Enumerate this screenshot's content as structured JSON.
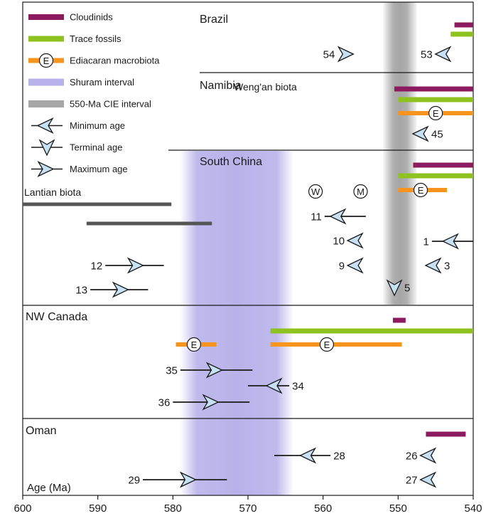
{
  "chart_data": {
    "type": "range-timeline",
    "title": "",
    "xlabel": "Age (Ma)",
    "xlim": [
      600,
      540
    ],
    "x_ticks": [
      600,
      590,
      580,
      570,
      560,
      550,
      540
    ],
    "x_direction": "decreasing-left-to-right",
    "grid": false,
    "legend_placement": "top-left",
    "colors": {
      "cloudinids": "#8b1a5e",
      "trace_fossils": "#8dc21f",
      "ediacaran": "#f7941d",
      "shuram": "#b8b2ea",
      "cie": "#a6a6a6",
      "biota_bar": "#555555",
      "arrow_fill": "#c5e1f3",
      "line": "#1a1a1a"
    },
    "legend": [
      {
        "label": "Cloudinids",
        "symbol": "cloudinids"
      },
      {
        "label": "Trace fossils",
        "symbol": "trace"
      },
      {
        "label": "Ediacaran macrobiota",
        "symbol": "ediacaran"
      },
      {
        "label": "Shuram interval",
        "symbol": "shuram"
      },
      {
        "label": "550-Ma CIE interval",
        "symbol": "cie"
      },
      {
        "label": "Minimum age",
        "symbol": "min"
      },
      {
        "label": "Terminal age",
        "symbol": "terminal"
      },
      {
        "label": "Maximum age",
        "symbol": "max"
      }
    ],
    "intervals": [
      {
        "name": "Shuram interval",
        "x": [
          578.5,
          564.5
        ]
      },
      {
        "name": "550-Ma CIE interval",
        "x": [
          552,
          547.5
        ]
      }
    ],
    "e_symbol": "E",
    "regions": [
      {
        "name": "Brazil",
        "bars": [
          {
            "kind": "cloudinids",
            "x": [
              542.5,
              540
            ]
          },
          {
            "kind": "trace",
            "x": [
              543,
              540
            ]
          }
        ],
        "ages": [
          {
            "label": "54",
            "type": "max",
            "x": 557,
            "label_side": "left"
          },
          {
            "label": "53",
            "type": "min",
            "x": 544,
            "label_side": "left"
          }
        ]
      },
      {
        "name": "Namibia",
        "bars": [
          {
            "kind": "cloudinids",
            "x": [
              550.5,
              540
            ]
          },
          {
            "kind": "trace",
            "x": [
              550,
              540
            ]
          },
          {
            "kind": "ediacaran",
            "x": [
              550,
              540
            ],
            "e_at": 545
          }
        ],
        "ages": [
          {
            "label": "45",
            "type": "min",
            "x": 547,
            "label_side": "right"
          }
        ]
      },
      {
        "name": "South China",
        "bars": [
          {
            "kind": "cloudinids",
            "x": [
              548,
              540
            ]
          },
          {
            "kind": "trace",
            "x": [
              550,
              540
            ]
          },
          {
            "kind": "ediacaran",
            "x": [
              550,
              543.5
            ],
            "e_at": 547
          }
        ],
        "biota": [
          {
            "label": "Lantian biota",
            "x": [
              600,
              580.2
            ]
          },
          {
            "label": "Weng'an biota",
            "x": [
              591.5,
              574.8
            ]
          }
        ],
        "markers": [
          {
            "label": "W",
            "x": 561
          },
          {
            "label": "M",
            "x": 555
          }
        ],
        "ages": [
          {
            "label": "11",
            "type": "min",
            "x": 558,
            "range": [
              559.8,
              554.3
            ],
            "label_side": "left"
          },
          {
            "label": "10",
            "type": "min",
            "x": 555.7,
            "label_side": "left"
          },
          {
            "label": "9",
            "type": "min",
            "x": 555.7,
            "label_side": "left"
          },
          {
            "label": "1",
            "type": "min",
            "x": 543,
            "range": [
              545.5,
              540
            ],
            "label_side": "left"
          },
          {
            "label": "3",
            "type": "min",
            "x": 545.3,
            "label_side": "right"
          },
          {
            "label": "12",
            "type": "max",
            "x": 585,
            "range": [
              589,
              581.2
            ],
            "label_side": "left"
          },
          {
            "label": "13",
            "type": "max",
            "x": 587,
            "range": [
              591,
              583.3
            ],
            "label_side": "left"
          },
          {
            "label": "5",
            "type": "terminal",
            "x": 550.5,
            "label_side": "right"
          }
        ]
      },
      {
        "name": "NW Canada",
        "bars": [
          {
            "kind": "cloudinids",
            "x": [
              550.7,
              549
            ]
          },
          {
            "kind": "trace",
            "x": [
              567,
              540
            ]
          },
          {
            "kind": "ediacaran",
            "x": [
              579.6,
              574.2
            ],
            "e_at": 577.2
          },
          {
            "kind": "ediacaran",
            "x": [
              567,
              549.5
            ],
            "e_at": 559.5
          }
        ],
        "ages": [
          {
            "label": "35",
            "type": "max",
            "x": 574.5,
            "range": [
              579,
              569.4
            ],
            "label_side": "left"
          },
          {
            "label": "34",
            "type": "min",
            "x": 566.5,
            "range": [
              570,
              564.5
            ],
            "label_side": "right"
          },
          {
            "label": "36",
            "type": "max",
            "x": 575,
            "range": [
              580,
              569.8
            ],
            "label_side": "left"
          }
        ]
      },
      {
        "name": "Oman",
        "bars": [
          {
            "kind": "cloudinids",
            "x": [
              546.3,
              541
            ]
          }
        ],
        "ages": [
          {
            "label": "28",
            "type": "min",
            "x": 562,
            "range": [
              566.5,
              559
            ],
            "label_side": "right"
          },
          {
            "label": "26",
            "type": "min",
            "x": 546,
            "label_side": "left"
          },
          {
            "label": "27",
            "type": "min",
            "x": 546,
            "label_side": "left"
          },
          {
            "label": "29",
            "type": "max",
            "x": 578,
            "range": [
              584,
              572.8
            ],
            "label_side": "left"
          }
        ]
      }
    ]
  }
}
